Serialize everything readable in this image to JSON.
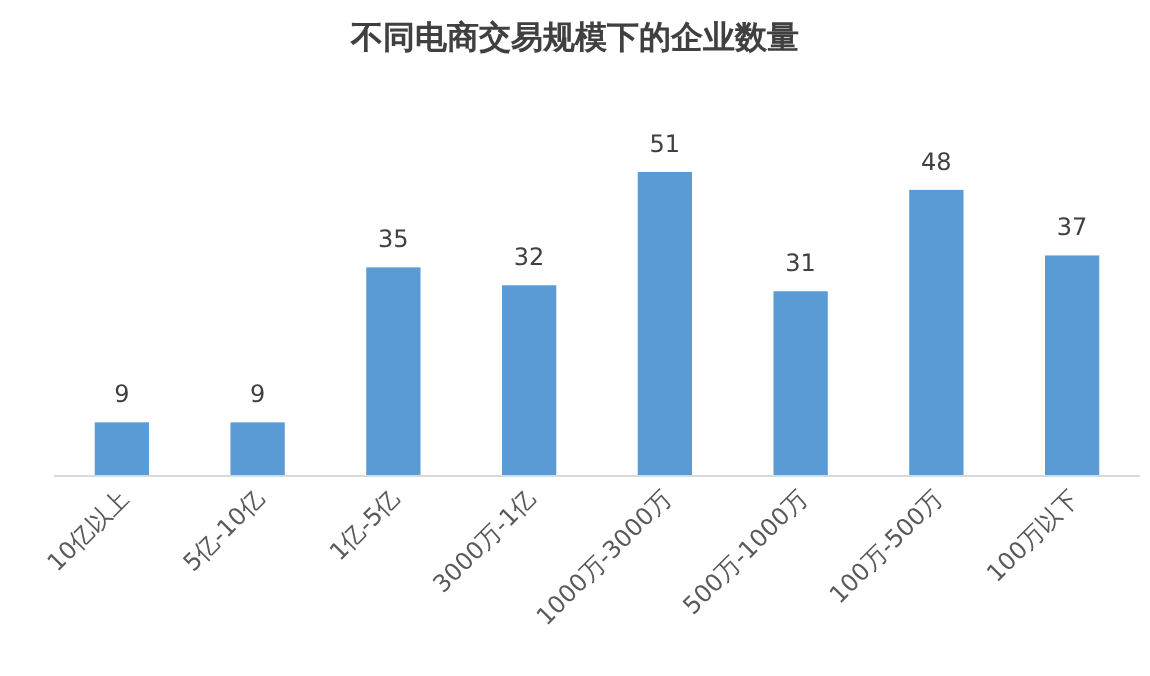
{
  "chart_data": {
    "type": "bar",
    "title": "不同电商交易规模下的企业数量",
    "categories": [
      "10亿以上",
      "5亿-10亿",
      "1亿-5亿",
      "3000万-1亿",
      "1000万-3000万",
      "500万-1000万",
      "100万-500万",
      "100万以下"
    ],
    "values": [
      9,
      9,
      35,
      32,
      51,
      31,
      48,
      37
    ],
    "color": "#5b9bd5",
    "data_labels": true
  }
}
